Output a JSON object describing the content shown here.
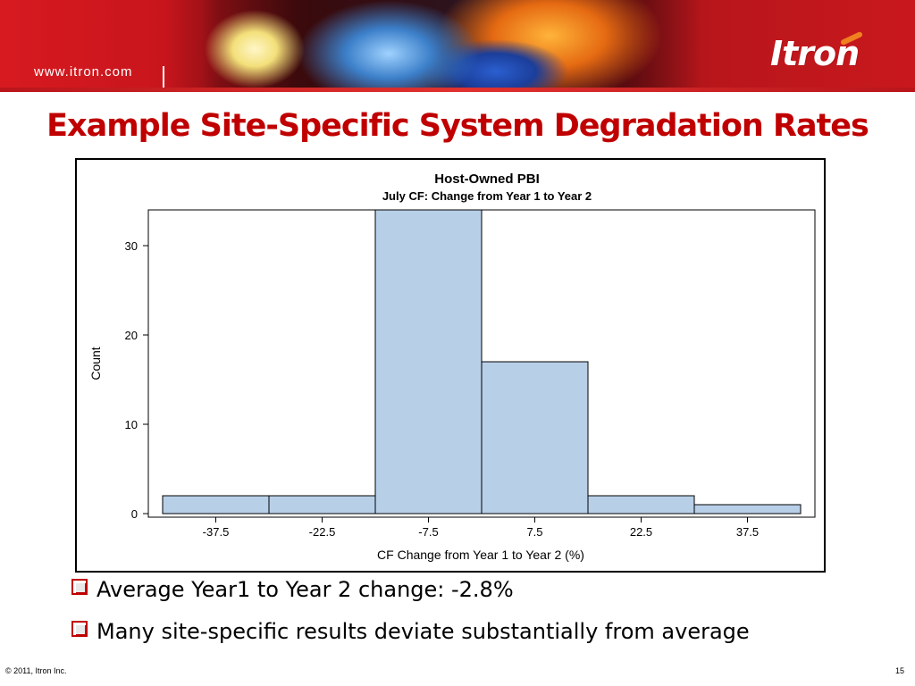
{
  "header": {
    "url": "www.itron.com",
    "logo_text": "Itron"
  },
  "slide": {
    "title": "Example Site-Specific System Degradation Rates",
    "bullets": [
      "Average Year1 to Year 2 change: -2.8%",
      "Many site-specific results deviate substantially from average"
    ]
  },
  "footer": {
    "copyright": "© 2011, Itron Inc.",
    "page_number": "15"
  },
  "colors": {
    "brand_red": "#c00000",
    "bar_fill": "#b8cfe8"
  },
  "chart_data": {
    "type": "bar",
    "title": "Host-Owned PBI",
    "subtitle": "July CF: Change from Year 1 to Year 2",
    "xlabel": "CF Change from Year 1 to Year 2 (%)",
    "ylabel": "Count",
    "categories": [
      "-37.5",
      "-22.5",
      "-7.5",
      "7.5",
      "22.5",
      "37.5"
    ],
    "values": [
      2,
      2,
      34,
      17,
      2,
      1
    ],
    "bin_width": 15,
    "yticks": [
      0,
      10,
      20,
      30
    ],
    "ylim": [
      0,
      34
    ],
    "grid": false
  }
}
